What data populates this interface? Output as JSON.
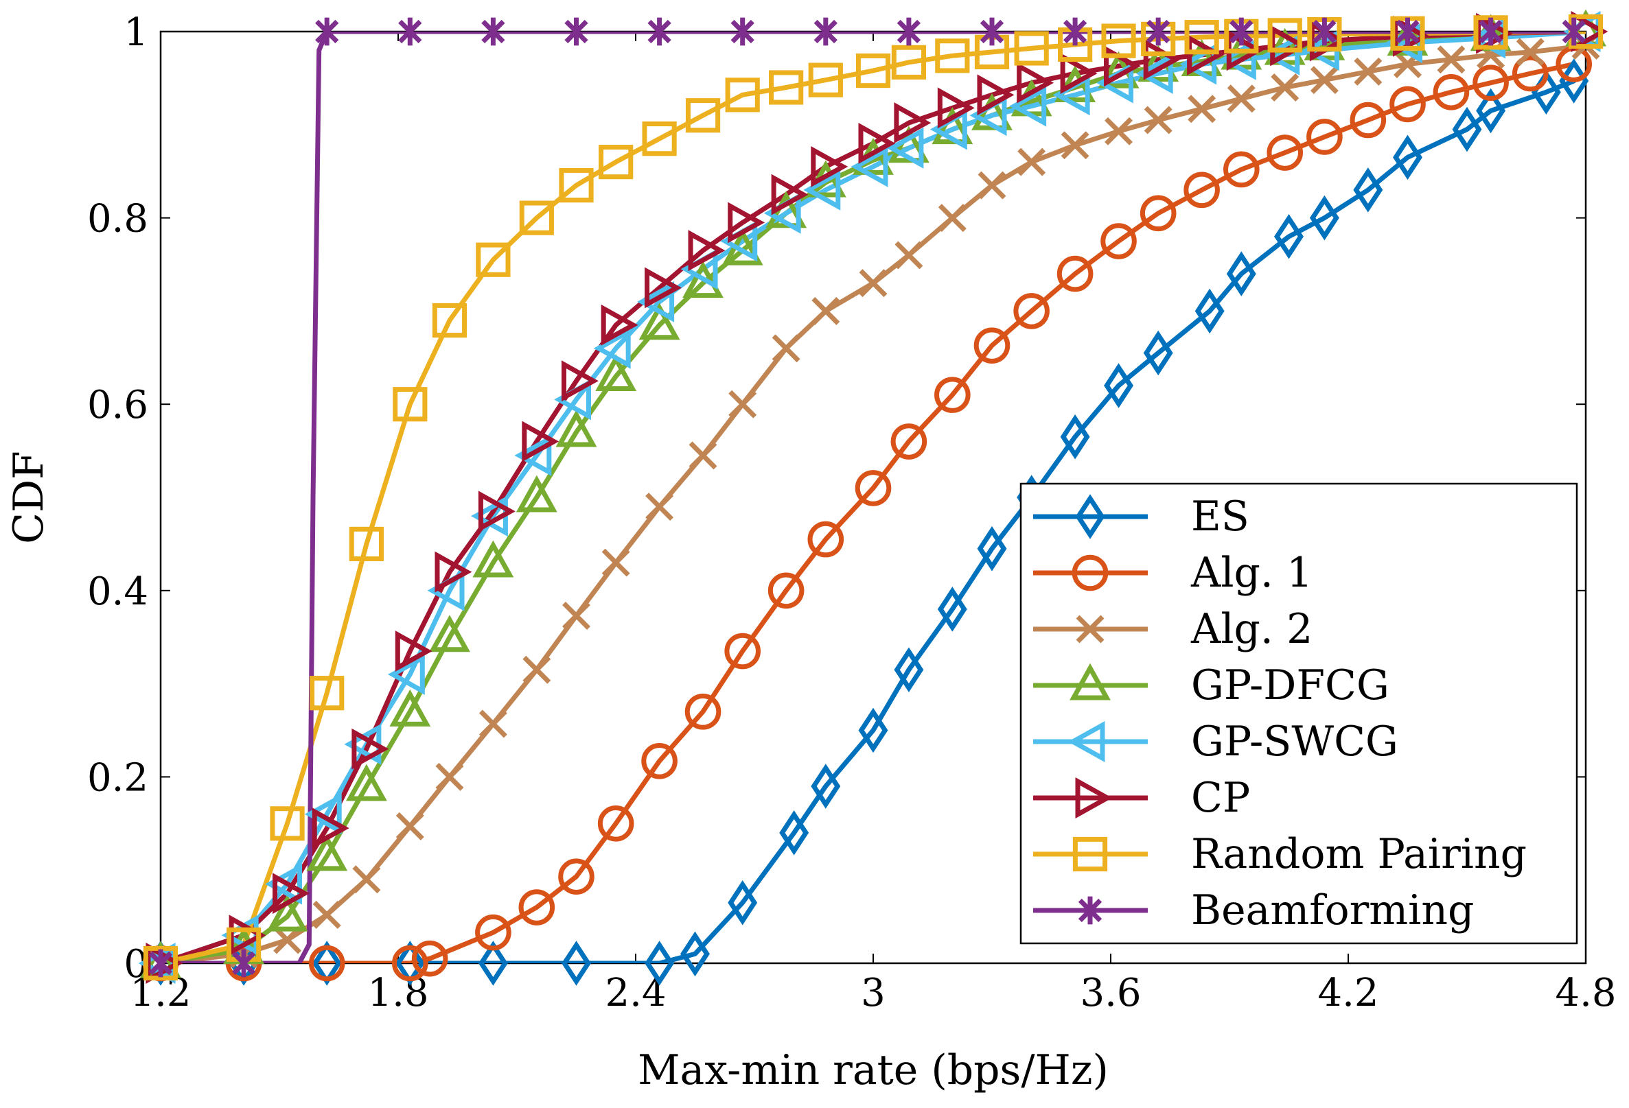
{
  "chart_data": {
    "type": "line",
    "title": "",
    "xlabel": "Max-min rate (bps/Hz)",
    "ylabel": "CDF",
    "xlim": [
      1.2,
      4.8
    ],
    "ylim": [
      0,
      1
    ],
    "xticks": [
      "1.2",
      "1.8",
      "2.4",
      "3",
      "3.6",
      "4.2",
      "4.8"
    ],
    "yticks": [
      "0",
      "0.2",
      "0.4",
      "0.6",
      "0.8",
      "1"
    ],
    "grid": false,
    "legend_position": "lower-right",
    "series": [
      {
        "name": "ES",
        "color": "#0072BD",
        "marker": "diamond",
        "x": [
          1.2,
          1.41,
          1.62,
          1.83,
          2.04,
          2.25,
          2.46,
          2.55,
          2.67,
          2.8,
          2.88,
          3.0,
          3.09,
          3.2,
          3.3,
          3.4,
          3.51,
          3.62,
          3.72,
          3.85,
          3.93,
          4.05,
          4.14,
          4.25,
          4.35,
          4.5,
          4.56,
          4.7,
          4.77
        ],
        "y": [
          0,
          0,
          0,
          0,
          0,
          0,
          0,
          0.01,
          0.065,
          0.14,
          0.19,
          0.25,
          0.315,
          0.38,
          0.445,
          0.5,
          0.565,
          0.62,
          0.655,
          0.7,
          0.74,
          0.78,
          0.8,
          0.83,
          0.865,
          0.895,
          0.915,
          0.935,
          0.947
        ]
      },
      {
        "name": "Alg. 1",
        "color": "#D95319",
        "marker": "circle",
        "x": [
          1.2,
          1.41,
          1.62,
          1.83,
          1.88,
          2.04,
          2.15,
          2.25,
          2.35,
          2.46,
          2.57,
          2.67,
          2.78,
          2.88,
          3.0,
          3.09,
          3.2,
          3.3,
          3.4,
          3.51,
          3.62,
          3.72,
          3.83,
          3.93,
          4.04,
          4.14,
          4.25,
          4.35,
          4.46,
          4.56,
          4.66,
          4.77
        ],
        "y": [
          0,
          0,
          0,
          0,
          0.005,
          0.033,
          0.06,
          0.093,
          0.15,
          0.217,
          0.27,
          0.335,
          0.4,
          0.455,
          0.51,
          0.56,
          0.61,
          0.663,
          0.7,
          0.74,
          0.775,
          0.805,
          0.83,
          0.852,
          0.87,
          0.887,
          0.905,
          0.922,
          0.935,
          0.945,
          0.955,
          0.965
        ]
      },
      {
        "name": "Alg. 2",
        "color": "#C08553",
        "marker": "x",
        "x": [
          1.2,
          1.41,
          1.52,
          1.62,
          1.72,
          1.83,
          1.93,
          2.04,
          2.15,
          2.25,
          2.35,
          2.46,
          2.57,
          2.67,
          2.78,
          2.88,
          3.0,
          3.09,
          3.2,
          3.3,
          3.4,
          3.51,
          3.62,
          3.72,
          3.83,
          3.93,
          4.04,
          4.14,
          4.25,
          4.35,
          4.46,
          4.56,
          4.66,
          4.8
        ],
        "y": [
          0,
          0.01,
          0.025,
          0.052,
          0.09,
          0.147,
          0.2,
          0.257,
          0.315,
          0.373,
          0.43,
          0.49,
          0.545,
          0.6,
          0.66,
          0.7,
          0.73,
          0.76,
          0.8,
          0.835,
          0.86,
          0.878,
          0.893,
          0.905,
          0.917,
          0.928,
          0.94,
          0.948,
          0.957,
          0.965,
          0.97,
          0.975,
          0.978,
          0.985
        ]
      },
      {
        "name": "GP-DFCG",
        "color": "#77AC30",
        "marker": "triangle-up",
        "x": [
          1.2,
          1.41,
          1.52,
          1.62,
          1.72,
          1.83,
          1.93,
          2.04,
          2.15,
          2.25,
          2.35,
          2.46,
          2.57,
          2.67,
          2.78,
          2.88,
          3.0,
          3.09,
          3.2,
          3.3,
          3.4,
          3.51,
          3.62,
          3.72,
          3.83,
          3.93,
          4.04,
          4.14,
          4.35,
          4.56,
          4.8
        ],
        "y": [
          0,
          0.015,
          0.05,
          0.115,
          0.19,
          0.27,
          0.35,
          0.43,
          0.5,
          0.57,
          0.63,
          0.685,
          0.73,
          0.765,
          0.805,
          0.838,
          0.862,
          0.875,
          0.895,
          0.91,
          0.925,
          0.94,
          0.955,
          0.962,
          0.968,
          0.975,
          0.98,
          0.985,
          0.99,
          0.995,
          1.0
        ]
      },
      {
        "name": "GP-SWCG",
        "color": "#4DBEEE",
        "marker": "triangle-left",
        "x": [
          1.2,
          1.41,
          1.52,
          1.62,
          1.72,
          1.83,
          1.93,
          2.04,
          2.15,
          2.25,
          2.35,
          2.46,
          2.57,
          2.67,
          2.78,
          2.88,
          3.0,
          3.09,
          3.2,
          3.3,
          3.4,
          3.51,
          3.62,
          3.72,
          3.83,
          3.93,
          4.04,
          4.14,
          4.35,
          4.56,
          4.8
        ],
        "y": [
          0,
          0.03,
          0.085,
          0.16,
          0.235,
          0.31,
          0.4,
          0.48,
          0.545,
          0.605,
          0.66,
          0.71,
          0.745,
          0.775,
          0.805,
          0.83,
          0.855,
          0.875,
          0.895,
          0.91,
          0.92,
          0.932,
          0.945,
          0.955,
          0.965,
          0.97,
          0.975,
          0.98,
          0.988,
          0.993,
          1.0
        ]
      },
      {
        "name": "CP",
        "color": "#A2142F",
        "marker": "triangle-right",
        "x": [
          1.2,
          1.41,
          1.52,
          1.62,
          1.72,
          1.83,
          1.93,
          2.04,
          2.15,
          2.25,
          2.35,
          2.46,
          2.57,
          2.67,
          2.78,
          2.88,
          3.0,
          3.09,
          3.2,
          3.3,
          3.4,
          3.51,
          3.62,
          3.72,
          3.83,
          3.93,
          4.04,
          4.14,
          4.35,
          4.56,
          4.8
        ],
        "y": [
          0,
          0.03,
          0.075,
          0.145,
          0.23,
          0.335,
          0.42,
          0.485,
          0.56,
          0.625,
          0.685,
          0.725,
          0.765,
          0.795,
          0.825,
          0.855,
          0.88,
          0.902,
          0.918,
          0.932,
          0.945,
          0.955,
          0.963,
          0.97,
          0.975,
          0.98,
          0.985,
          0.99,
          0.995,
          0.998,
          1.0
        ]
      },
      {
        "name": "Random Pairing",
        "color": "#EDB120",
        "marker": "square",
        "x": [
          1.2,
          1.41,
          1.52,
          1.62,
          1.72,
          1.83,
          1.93,
          2.04,
          2.15,
          2.25,
          2.35,
          2.46,
          2.57,
          2.67,
          2.78,
          2.88,
          3.0,
          3.09,
          3.2,
          3.3,
          3.4,
          3.51,
          3.62,
          3.72,
          3.83,
          3.93,
          4.04,
          4.14,
          4.35,
          4.56,
          4.8
        ],
        "y": [
          0,
          0.02,
          0.15,
          0.29,
          0.45,
          0.6,
          0.69,
          0.755,
          0.8,
          0.835,
          0.86,
          0.885,
          0.91,
          0.932,
          0.94,
          0.948,
          0.958,
          0.967,
          0.974,
          0.978,
          0.982,
          0.986,
          0.99,
          0.992,
          0.994,
          0.995,
          0.996,
          0.997,
          0.998,
          0.999,
          1.0
        ]
      },
      {
        "name": "Beamforming",
        "color": "#7E2F8E",
        "marker": "star",
        "x": [
          1.2,
          1.41,
          1.5,
          1.55,
          1.575,
          1.585,
          1.6,
          1.62,
          1.83,
          2.04,
          2.25,
          2.46,
          2.67,
          2.88,
          3.09,
          3.3,
          3.51,
          3.72,
          3.93,
          4.14,
          4.35,
          4.56,
          4.77
        ],
        "y": [
          0,
          0,
          0,
          0.0,
          0.02,
          0.5,
          0.98,
          1.0,
          1.0,
          1.0,
          1.0,
          1.0,
          1.0,
          1.0,
          1.0,
          1.0,
          1.0,
          1.0,
          1.0,
          1.0,
          1.0,
          1.0,
          1.0
        ]
      }
    ]
  }
}
